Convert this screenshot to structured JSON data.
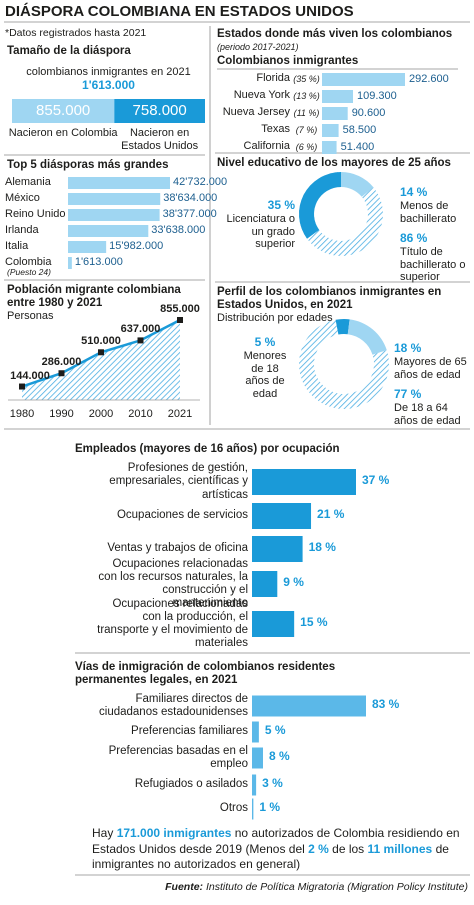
{
  "title": "DIÁSPORA COLOMBIANA EN ESTADOS UNIDOS",
  "note": "*Datos registrados hasta 2021",
  "chart_data": [
    {
      "type": "stacked",
      "title": "Tamaño de la diáspora",
      "subtitle": "colombianos inmigrantes en 2021",
      "total": 1613000,
      "total_label": "1'613.000",
      "series": [
        {
          "name": "Nacieron en Colombia",
          "color": "#9fd6f2",
          "values": [
            855000
          ],
          "value_labels": [
            "855.000"
          ]
        },
        {
          "name": "Nacieron en Estados Unidos",
          "color": "#1a9ad8",
          "values": [
            758000
          ],
          "value_labels": [
            "758.000"
          ]
        }
      ]
    },
    {
      "type": "hbar",
      "title": "Top 5 diásporas más grandes",
      "categories": [
        "Alemania",
        "México",
        "Reino Unido",
        "Irlanda",
        "Italia",
        "Colombia"
      ],
      "category_note": "(Puesto 24)",
      "values": [
        42732000,
        38634000,
        38377000,
        33638000,
        15982000,
        1613000
      ],
      "value_labels": [
        "42'732.000",
        "38'634.000",
        "38'377.000",
        "33'638.000",
        "15'982.000",
        "1'613.000"
      ],
      "color": "#9fd6f2"
    },
    {
      "type": "area",
      "title": "Población migrante colombiana entre 1980 y 2021",
      "subtitle": "Personas",
      "categories": [
        "1980",
        "1990",
        "2000",
        "2010",
        "2021"
      ],
      "values": [
        144000,
        286000,
        510000,
        637000,
        855000
      ],
      "value_labels": [
        "144.000",
        "286.000",
        "510.000",
        "637.000",
        "855.000"
      ],
      "color": "#1a9ad8"
    },
    {
      "type": "hbar",
      "title": "Estados donde más viven los colombianos",
      "subtitle": "(periodo 2017-2021)",
      "heading": "Colombianos inmigrantes",
      "categories": [
        "Florida",
        "Nueva York",
        "Nueva Jersey",
        "Texas",
        "California"
      ],
      "shares": [
        "(35 %)",
        "(13 %)",
        "(11 %)",
        "(7 %)",
        "(6 %)"
      ],
      "values": [
        292600,
        109300,
        90600,
        58500,
        51400
      ],
      "value_labels": [
        "292.600",
        "109.300",
        "90.600",
        "58.500",
        "51.400"
      ],
      "color": "#9fd6f2"
    },
    {
      "type": "donut",
      "title": "Nivel educativo de los mayores de 25 años",
      "categories": [
        "Licenciatura o un grado superior",
        "Menos de bachillerato",
        "Título de bachillerato o superior"
      ],
      "values": [
        35,
        14,
        86
      ],
      "value_labels": [
        "35 %",
        "14 %",
        "86 %"
      ],
      "colors": [
        "#1a9ad8",
        "#9fd6f2",
        "#4aaee3"
      ],
      "hatched": [
        false,
        false,
        true
      ]
    },
    {
      "type": "donut",
      "title": "Perfil de los colombianos inmigrantes en Estados Unidos, en 2021",
      "subtitle": "Distribución por edades",
      "categories": [
        "Menores de 18 años de edad",
        "Mayores de 65 años de edad",
        "De 18 a 64 años de edad"
      ],
      "values": [
        5,
        18,
        77
      ],
      "value_labels": [
        "5 %",
        "18 %",
        "77 %"
      ],
      "colors": [
        "#1a9ad8",
        "#9fd6f2",
        "#4aaee3"
      ],
      "hatched": [
        false,
        false,
        true
      ]
    },
    {
      "type": "hbar",
      "title": "Empleados (mayores de 16 años) por ocupación",
      "categories": [
        "Profesiones de gestión, empresariales, científicas y artísticas",
        "Ocupaciones de servicios",
        "Ventas y trabajos de oficina",
        "Ocupaciones relacionadas con los recursos naturales, la construcción y el mantenimiento",
        "Ocupaciones relacionadas con la producción, el transporte y el movimiento de materiales"
      ],
      "values": [
        37,
        21,
        18,
        9,
        15
      ],
      "value_labels": [
        "37 %",
        "21 %",
        "18 %",
        "9 %",
        "15 %"
      ],
      "color": "#1a9ad8"
    },
    {
      "type": "hbar",
      "title": "Vías de inmigración de colombianos residentes permanentes legales, en 2021",
      "categories": [
        "Familiares directos de ciudadanos estadounidenses",
        "Preferencias familiares",
        "Preferencias basadas en el empleo",
        "Refugiados o asilados",
        "Otros"
      ],
      "values": [
        83,
        5,
        8,
        3,
        1
      ],
      "value_labels": [
        "83 %",
        "5 %",
        "8 %",
        "3 %",
        "1 %"
      ],
      "color": "#5bb8e8"
    }
  ],
  "footnote": [
    "Hay ",
    "171.000 inmigrantes",
    " no autorizados de Colombia residiendo en Estados Unidos desde 2019 (Menos del ",
    "2 %",
    " de los ",
    "11 millones",
    " de inmigrantes no autorizados en general)"
  ],
  "source_label": "Fuente:",
  "source": " Instituto de Política Migratoria (Migration Policy Institute)"
}
